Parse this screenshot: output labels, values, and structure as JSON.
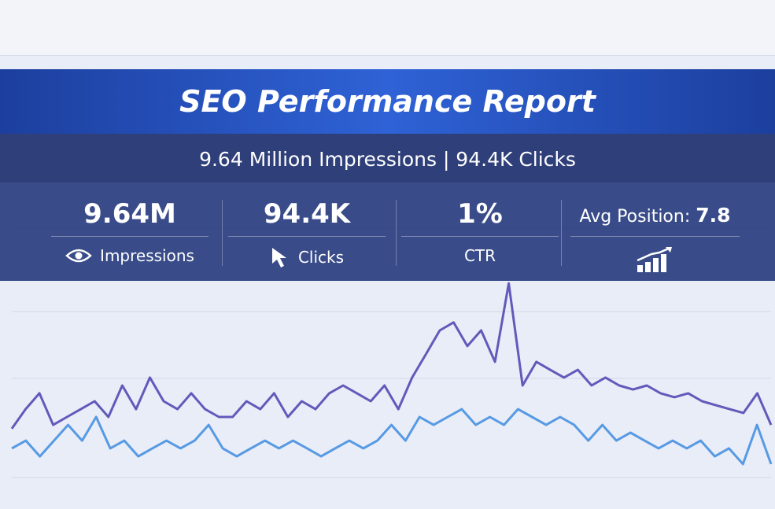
{
  "header": {
    "title": "SEO Performance Report",
    "subtitle": "9.64 Million Impressions | 94.4K Clicks"
  },
  "stats": [
    {
      "value": "9.64M",
      "label": "Impressions"
    },
    {
      "value": "94.4K",
      "label": "Clicks"
    },
    {
      "value": "1%",
      "label": "CTR"
    },
    {
      "label": "Avg Position:",
      "value": "7.8"
    }
  ],
  "chart_data": {
    "type": "line",
    "ylim": [
      0,
      1000
    ],
    "series": [
      {
        "color": "#4a3fb0",
        "values": [
          196,
          274,
          338,
          211,
          243,
          274,
          306,
          243,
          369,
          274,
          401,
          306,
          274,
          338,
          274,
          243,
          243,
          306,
          274,
          338,
          243,
          306,
          274,
          338,
          369,
          338,
          306,
          369,
          274,
          401,
          495,
          590,
          622,
          527,
          590,
          464,
          779,
          369,
          464,
          432,
          401,
          432,
          369,
          401,
          369,
          353,
          369,
          338,
          322,
          338,
          306,
          290,
          274,
          259,
          338,
          211
        ]
      },
      {
        "color": "#3d8be0",
        "values": [
          117,
          148,
          85,
          148,
          211,
          148,
          243,
          117,
          148,
          85,
          117,
          148,
          117,
          148,
          211,
          117,
          85,
          117,
          148,
          117,
          148,
          117,
          85,
          117,
          148,
          117,
          148,
          211,
          148,
          243,
          211,
          243,
          274,
          211,
          243,
          211,
          274,
          243,
          211,
          243,
          211,
          148,
          211,
          148,
          180,
          148,
          117,
          148,
          117,
          148,
          85,
          117,
          54,
          211,
          54
        ]
      }
    ]
  }
}
